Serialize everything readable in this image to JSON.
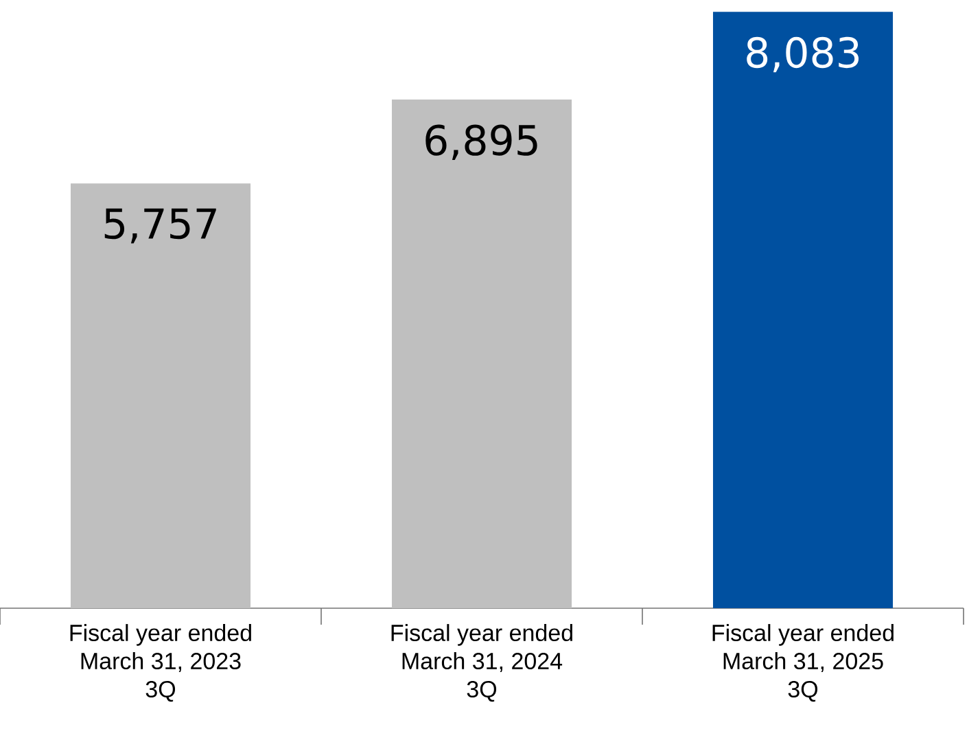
{
  "chart_data": {
    "type": "bar",
    "categories": [
      "Fiscal year ended\nMarch 31, 2023\n3Q",
      "Fiscal year ended\nMarch 31, 2024\n3Q",
      "Fiscal year ended\nMarch 31, 2025\n3Q"
    ],
    "values": [
      5757,
      6895,
      8083
    ],
    "value_labels": [
      "5,757",
      "6,895",
      "8,083"
    ],
    "colors": [
      "#bfbfbf",
      "#bfbfbf",
      "#0050a0"
    ],
    "tick_labels": "x"
  }
}
